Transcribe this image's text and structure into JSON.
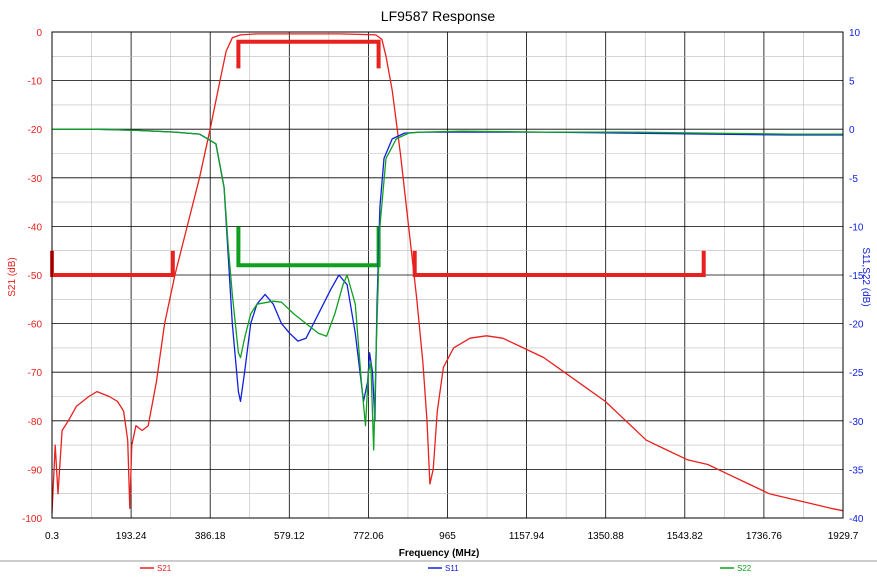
{
  "chart_data": {
    "type": "line",
    "title": "LF9587 Response",
    "xlabel": "Frequency (MHz)",
    "ylabel_left": "S21 (dB)",
    "ylabel_right": "S11,S22 (dB)",
    "xlim": [
      0.3,
      1929.7
    ],
    "ylim_left": [
      -100,
      0
    ],
    "ylim_right": [
      -40,
      10
    ],
    "x_ticks": [
      "0.3",
      "193.24",
      "386.18",
      "579.12",
      "772.06",
      "965",
      "1157.94",
      "1350.88",
      "1543.82",
      "1736.76",
      "1929.7"
    ],
    "y_ticks_left": [
      "0",
      "-10",
      "-20",
      "-30",
      "-40",
      "-50",
      "-60",
      "-70",
      "-80",
      "-90",
      "-100"
    ],
    "y_ticks_right": [
      "10",
      "5",
      "0",
      "-5",
      "-10",
      "-15",
      "-20",
      "-25",
      "-30",
      "-35",
      "-40"
    ],
    "grid": true,
    "legend": "bottom",
    "colors": {
      "S21": "#e8201e",
      "S11": "#1020e0",
      "S22": "#10a020"
    },
    "series": [
      {
        "name": "S21",
        "axis": "left",
        "points": [
          [
            0.3,
            -99
          ],
          [
            8,
            -85
          ],
          [
            15,
            -95
          ],
          [
            25,
            -82
          ],
          [
            40,
            -80
          ],
          [
            60,
            -77
          ],
          [
            90,
            -75
          ],
          [
            110,
            -74
          ],
          [
            140,
            -75
          ],
          [
            160,
            -76
          ],
          [
            175,
            -78
          ],
          [
            185,
            -84
          ],
          [
            190,
            -98
          ],
          [
            195,
            -85
          ],
          [
            205,
            -81
          ],
          [
            220,
            -82
          ],
          [
            235,
            -81
          ],
          [
            255,
            -72
          ],
          [
            275,
            -60
          ],
          [
            300,
            -50
          ],
          [
            330,
            -40
          ],
          [
            360,
            -30
          ],
          [
            386,
            -20
          ],
          [
            410,
            -10
          ],
          [
            425,
            -4
          ],
          [
            440,
            -1.2
          ],
          [
            460,
            -0.6
          ],
          [
            500,
            -0.4
          ],
          [
            550,
            -0.4
          ],
          [
            600,
            -0.4
          ],
          [
            650,
            -0.4
          ],
          [
            700,
            -0.4
          ],
          [
            750,
            -0.5
          ],
          [
            790,
            -0.6
          ],
          [
            805,
            -1.5
          ],
          [
            815,
            -5
          ],
          [
            830,
            -12
          ],
          [
            850,
            -25
          ],
          [
            870,
            -40
          ],
          [
            890,
            -55
          ],
          [
            905,
            -68
          ],
          [
            915,
            -80
          ],
          [
            922,
            -93
          ],
          [
            930,
            -90
          ],
          [
            940,
            -78
          ],
          [
            955,
            -69
          ],
          [
            980,
            -65
          ],
          [
            1020,
            -63
          ],
          [
            1060,
            -62.5
          ],
          [
            1100,
            -63
          ],
          [
            1150,
            -65
          ],
          [
            1200,
            -67
          ],
          [
            1250,
            -70
          ],
          [
            1300,
            -73
          ],
          [
            1350,
            -76
          ],
          [
            1400,
            -80
          ],
          [
            1450,
            -84
          ],
          [
            1500,
            -86
          ],
          [
            1550,
            -88
          ],
          [
            1600,
            -89
          ],
          [
            1650,
            -91
          ],
          [
            1700,
            -93
          ],
          [
            1750,
            -95
          ],
          [
            1800,
            -96
          ],
          [
            1850,
            -97
          ],
          [
            1900,
            -98
          ],
          [
            1929.7,
            -98.5
          ]
        ]
      },
      {
        "name": "S11",
        "axis": "right",
        "points": [
          [
            0.3,
            0
          ],
          [
            100,
            0
          ],
          [
            200,
            -0.1
          ],
          [
            300,
            -0.3
          ],
          [
            360,
            -0.5
          ],
          [
            400,
            -1.5
          ],
          [
            420,
            -6
          ],
          [
            430,
            -13
          ],
          [
            440,
            -20
          ],
          [
            455,
            -27
          ],
          [
            460,
            -28
          ],
          [
            470,
            -25
          ],
          [
            485,
            -20
          ],
          [
            500,
            -18
          ],
          [
            520,
            -17
          ],
          [
            540,
            -18
          ],
          [
            560,
            -20
          ],
          [
            580,
            -21
          ],
          [
            600,
            -21.8
          ],
          [
            620,
            -21.5
          ],
          [
            650,
            -19
          ],
          [
            680,
            -16.5
          ],
          [
            700,
            -15
          ],
          [
            720,
            -16
          ],
          [
            740,
            -21
          ],
          [
            760,
            -28
          ],
          [
            770,
            -26
          ],
          [
            775,
            -23
          ],
          [
            782,
            -25
          ],
          [
            788,
            -30
          ],
          [
            793,
            -18
          ],
          [
            800,
            -8
          ],
          [
            810,
            -3
          ],
          [
            830,
            -1
          ],
          [
            860,
            -0.4
          ],
          [
            900,
            -0.3
          ],
          [
            1000,
            -0.3
          ],
          [
            1200,
            -0.3
          ],
          [
            1400,
            -0.4
          ],
          [
            1600,
            -0.5
          ],
          [
            1800,
            -0.6
          ],
          [
            1929.7,
            -0.6
          ]
        ]
      },
      {
        "name": "S22",
        "axis": "right",
        "points": [
          [
            0.3,
            0
          ],
          [
            100,
            0
          ],
          [
            200,
            -0.1
          ],
          [
            300,
            -0.3
          ],
          [
            360,
            -0.5
          ],
          [
            400,
            -1.5
          ],
          [
            420,
            -6
          ],
          [
            430,
            -12
          ],
          [
            440,
            -17
          ],
          [
            455,
            -23
          ],
          [
            460,
            -23.5
          ],
          [
            470,
            -21.5
          ],
          [
            485,
            -19
          ],
          [
            500,
            -18
          ],
          [
            540,
            -17.7
          ],
          [
            560,
            -17.8
          ],
          [
            590,
            -19
          ],
          [
            620,
            -20
          ],
          [
            650,
            -21
          ],
          [
            670,
            -21.3
          ],
          [
            690,
            -19
          ],
          [
            710,
            -16
          ],
          [
            720,
            -15
          ],
          [
            740,
            -18
          ],
          [
            755,
            -26
          ],
          [
            765,
            -30.5
          ],
          [
            772,
            -25
          ],
          [
            778,
            -24
          ],
          [
            785,
            -33
          ],
          [
            790,
            -24
          ],
          [
            800,
            -10
          ],
          [
            815,
            -3
          ],
          [
            840,
            -1
          ],
          [
            870,
            -0.4
          ],
          [
            900,
            -0.3
          ],
          [
            1000,
            -0.2
          ],
          [
            1200,
            -0.3
          ],
          [
            1400,
            -0.3
          ],
          [
            1600,
            -0.4
          ],
          [
            1800,
            -0.5
          ],
          [
            1929.7,
            -0.5
          ]
        ]
      }
    ],
    "spec_masks": [
      {
        "color": "#e8201e",
        "axis": "left",
        "points": [
          [
            0.3,
            -45
          ],
          [
            0.3,
            -50
          ],
          [
            295,
            -50
          ],
          [
            295,
            -45
          ]
        ]
      },
      {
        "color": "#e8201e",
        "axis": "left",
        "points": [
          [
            455,
            -7.5
          ],
          [
            455,
            -2
          ],
          [
            797,
            -2
          ],
          [
            797,
            -7.5
          ]
        ]
      },
      {
        "color": "#e8201e",
        "axis": "left",
        "points": [
          [
            885,
            -45
          ],
          [
            885,
            -50
          ],
          [
            1590,
            -50
          ],
          [
            1590,
            -45
          ]
        ]
      },
      {
        "color": "#10a020",
        "axis": "right",
        "points": [
          [
            455,
            -10
          ],
          [
            455,
            -14
          ],
          [
            797,
            -14
          ],
          [
            797,
            -10
          ]
        ]
      }
    ],
    "legend_labels": [
      "S21",
      "S11",
      "S22"
    ]
  }
}
